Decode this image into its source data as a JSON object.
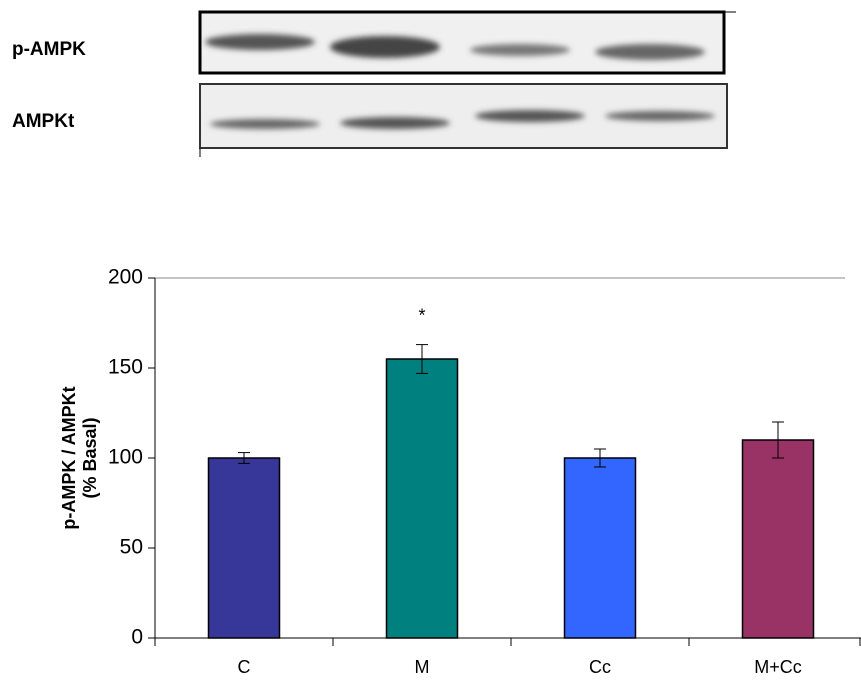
{
  "blot": {
    "labels": [
      "p-AMPK",
      "AMPKt"
    ]
  },
  "chart_data": {
    "type": "bar",
    "y_label": [
      "p-AMPK / AMPKt",
      "(% Basal)"
    ],
    "categories": [
      "C",
      "M",
      "Cc",
      "M+Cc"
    ],
    "values": [
      100,
      155,
      100,
      110
    ],
    "errors": [
      3,
      8,
      5,
      10
    ],
    "colors": [
      "#373799",
      "#00807f",
      "#3366ff",
      "#993366"
    ],
    "annotations": [
      {
        "text": "*",
        "category": 1
      }
    ],
    "ylim": [
      0,
      200
    ],
    "yticks": [
      0,
      50,
      100,
      150,
      200
    ]
  }
}
